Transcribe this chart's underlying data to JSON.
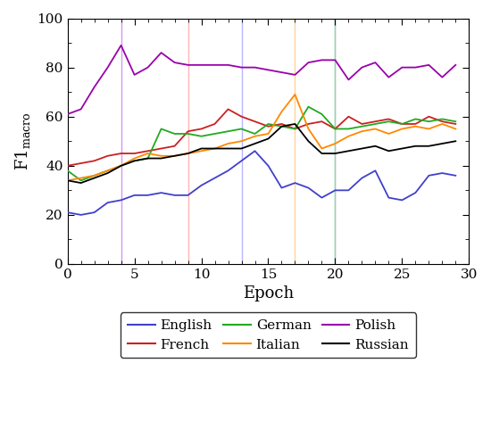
{
  "english": [
    21,
    20,
    21,
    25,
    26,
    28,
    28,
    29,
    28,
    28,
    32,
    35,
    38,
    42,
    46,
    40,
    31,
    33,
    31,
    27,
    30,
    30,
    35,
    38,
    27,
    26,
    29,
    36,
    37,
    36
  ],
  "french": [
    40,
    41,
    42,
    44,
    45,
    45,
    46,
    47,
    48,
    54,
    55,
    57,
    63,
    60,
    58,
    56,
    57,
    55,
    57,
    58,
    55,
    60,
    57,
    58,
    59,
    57,
    57,
    60,
    58,
    57
  ],
  "german": [
    38,
    34,
    36,
    38,
    40,
    42,
    43,
    55,
    53,
    53,
    52,
    53,
    54,
    55,
    53,
    57,
    56,
    55,
    64,
    61,
    55,
    55,
    56,
    57,
    58,
    57,
    59,
    58,
    59,
    58
  ],
  "italian": [
    34,
    35,
    36,
    38,
    40,
    43,
    45,
    44,
    44,
    45,
    46,
    47,
    49,
    50,
    52,
    53,
    62,
    69,
    55,
    47,
    49,
    52,
    54,
    55,
    53,
    55,
    56,
    55,
    57,
    55
  ],
  "polish": [
    61,
    63,
    72,
    80,
    89,
    77,
    80,
    86,
    82,
    81,
    81,
    81,
    81,
    80,
    80,
    79,
    78,
    77,
    82,
    83,
    83,
    75,
    80,
    82,
    76,
    80,
    80,
    81,
    76,
    81
  ],
  "russian": [
    34,
    33,
    35,
    37,
    40,
    42,
    43,
    43,
    44,
    45,
    47,
    47,
    47,
    47,
    49,
    51,
    56,
    57,
    50,
    45,
    45,
    46,
    47,
    48,
    46,
    47,
    48,
    48,
    49,
    50
  ],
  "vlines": {
    "polish": 4,
    "french": 9,
    "english": 13,
    "italian": 17,
    "german": 20,
    "russian": 20
  },
  "colors": {
    "english": "#4040cc",
    "french": "#cc2020",
    "german": "#20aa20",
    "italian": "#ff8800",
    "polish": "#9900aa",
    "russian": "#000000"
  },
  "vline_colors": {
    "polish": "#cc88ee",
    "french": "#ffaaaa",
    "english": "#aaaaff",
    "italian": "#ffcc88",
    "german": "#88ddaa",
    "russian": "#aaaaaa"
  },
  "xlabel": "Epoch",
  "ylim": [
    0,
    100
  ],
  "xlim": [
    0,
    30
  ],
  "yticks": [
    0,
    20,
    40,
    60,
    80,
    100
  ],
  "xticks": [
    0,
    5,
    10,
    15,
    20,
    25,
    30
  ],
  "legend_order": [
    "english",
    "french",
    "german",
    "italian",
    "polish",
    "russian"
  ],
  "labels": {
    "english": "English",
    "french": "French",
    "german": "German",
    "italian": "Italian",
    "polish": "Polish",
    "russian": "Russian"
  }
}
